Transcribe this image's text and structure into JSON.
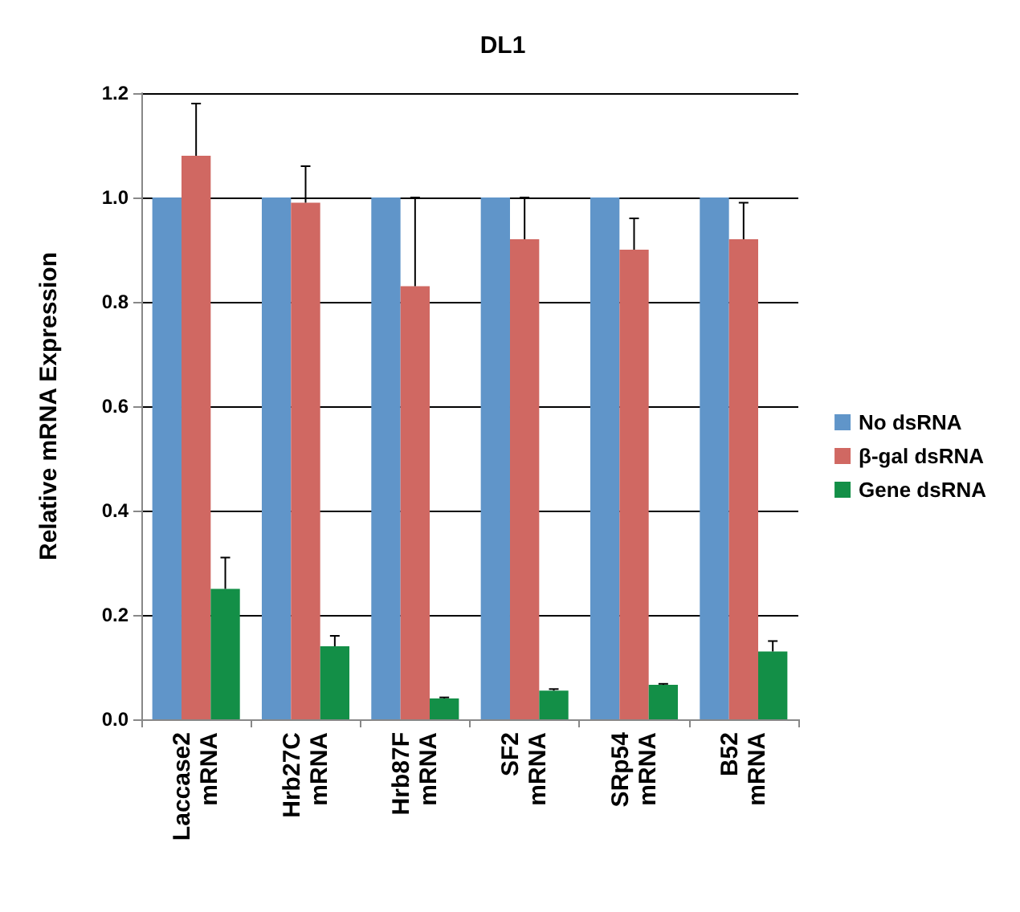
{
  "chart_data": {
    "type": "bar",
    "title": "DL1",
    "ylabel": "Relative mRNA Expression",
    "categories": [
      "Laccase2\nmRNA",
      "Hrb27C\nmRNA",
      "Hrb87F\nmRNA",
      "SF2\nmRNA",
      "SRp54\nmRNA",
      "B52\nmRNA"
    ],
    "series": [
      {
        "name": "No dsRNA",
        "color": "#6095c9",
        "values": [
          1.0,
          1.0,
          1.0,
          1.0,
          1.0,
          1.0
        ]
      },
      {
        "name": "β-gal dsRNA",
        "color": "#d06862",
        "values": [
          1.08,
          0.99,
          0.83,
          0.92,
          0.9,
          0.92
        ],
        "errors": [
          [
            1.08,
            1.18
          ],
          [
            0.99,
            1.06
          ],
          [
            0.83,
            1.0
          ],
          [
            0.92,
            1.0
          ],
          [
            0.9,
            0.96
          ],
          [
            0.92,
            0.99
          ]
        ]
      },
      {
        "name": "Gene dsRNA",
        "color": "#138f47",
        "values": [
          0.25,
          0.14,
          0.04,
          0.055,
          0.066,
          0.13
        ],
        "errors": [
          [
            0.25,
            0.31
          ],
          [
            0.14,
            0.16
          ],
          [
            0.04,
            0.042
          ],
          [
            0.055,
            0.058
          ],
          [
            0.066,
            0.068
          ],
          [
            0.13,
            0.15
          ]
        ]
      }
    ],
    "ylim": [
      0,
      1.2
    ],
    "yticks": [
      {
        "value": 0,
        "label": "0.0"
      },
      0.2,
      0.4,
      0.6,
      0.8,
      {
        "value": 1,
        "label": "1.0"
      },
      1.2
    ],
    "grid": "y",
    "legend": "right"
  }
}
